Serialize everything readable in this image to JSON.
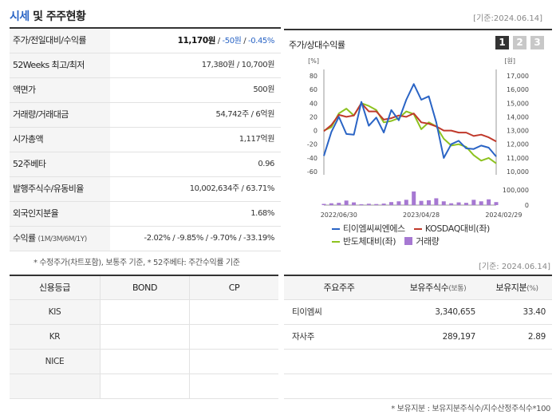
{
  "header": {
    "title_accent": "시세",
    "title_rest": "및 주주현황",
    "date": "[기준:2024.06.14]"
  },
  "summary_rows": [
    {
      "label": "주가/전일대비/수익률",
      "price": "11,170원",
      "sep1": " / ",
      "change": "-50원",
      "sep2": " / ",
      "rate": "-0.45%"
    },
    {
      "label": "52Weeks 최고/최저",
      "value": "17,380원 / 10,700원"
    },
    {
      "label": "액면가",
      "value": "500원"
    },
    {
      "label": "거래량/거래대금",
      "value": "54,742주 / 6억원"
    },
    {
      "label": "시가총액",
      "value": "1,117억원"
    },
    {
      "label": "52주베타",
      "value": "0.96"
    },
    {
      "label": "발행주식수/유동비율",
      "value": "10,002,634주 / 63.71%"
    },
    {
      "label": "외국인지분율",
      "value": "1.68%"
    },
    {
      "label": "수익률",
      "sublabel": "(1M/3M/6M/1Y)",
      "r1": "-2.02%",
      "r2": "-9.85%",
      "r3": "-9.70%",
      "r4": "-33.19%"
    }
  ],
  "summary_note": "* 수정주가(차트포함), 보통주 기준, * 52주베타: 주간수익률 기준",
  "chart": {
    "title": "주가/상대수익률",
    "tabs": [
      "1",
      "2",
      "3"
    ],
    "colors": {
      "stock": "#2a64c5",
      "kosdaq": "#c0392b",
      "semi": "#8dc21f",
      "volume": "#a678d2"
    }
  },
  "chart_data": {
    "type": "line",
    "left_unit": "[%]",
    "right_unit": "[원]",
    "left_ticks": [
      "80",
      "60",
      "40",
      "20",
      "0",
      "-20",
      "-40",
      "-60"
    ],
    "right_ticks": [
      "17,000",
      "16,000",
      "15,000",
      "14,000",
      "13,000",
      "12,000",
      "11,000",
      "10,000"
    ],
    "volume_ticks": [
      "100,000",
      "0"
    ],
    "left_ylim": [
      -60,
      80
    ],
    "right_ylim": [
      10000,
      17000
    ],
    "volume_ylim": [
      0,
      100000
    ],
    "x_labels": [
      "2022/06/30",
      "2023/04/28",
      "2024/02/29"
    ],
    "x_label_positions": [
      2,
      13,
      24
    ],
    "series": [
      {
        "name": "티이엠씨씨엔에스",
        "axis": "left",
        "values": [
          -37,
          -2,
          20,
          -5,
          -6,
          42,
          7,
          19,
          -3,
          30,
          15,
          45,
          68,
          45,
          50,
          12,
          -40,
          -20,
          -15,
          -26,
          -27,
          -22,
          -25,
          -38
        ]
      },
      {
        "name": "KOSDAQ대비(좌)",
        "axis": "left",
        "values": [
          -1,
          8,
          23,
          20,
          22,
          40,
          28,
          28,
          16,
          18,
          22,
          20,
          25,
          12,
          10,
          6,
          0,
          0,
          -3,
          -3,
          -8,
          -6,
          -10,
          -16
        ]
      },
      {
        "name": "반도체대비(좌)",
        "axis": "left",
        "values": [
          0,
          5,
          25,
          32,
          22,
          40,
          36,
          30,
          12,
          14,
          18,
          28,
          24,
          2,
          12,
          6,
          -12,
          -22,
          -20,
          -24,
          -36,
          -44,
          -40,
          -48
        ]
      }
    ],
    "volume": {
      "name": "거래량",
      "values": [
        8000,
        12000,
        15000,
        30000,
        18000,
        6000,
        9000,
        7000,
        10000,
        20000,
        25000,
        35000,
        90000,
        28000,
        32000,
        45000,
        25000,
        12000,
        18000,
        15000,
        35000,
        25000,
        38000,
        20000
      ]
    }
  },
  "credit": {
    "headers": [
      "신용등급",
      "BOND",
      "CP"
    ],
    "rows": [
      [
        "KIS",
        "",
        ""
      ],
      [
        "KR",
        "",
        ""
      ],
      [
        "NICE",
        "",
        ""
      ],
      [
        "",
        "",
        ""
      ]
    ]
  },
  "holders": {
    "date": "[기준: 2024.06.14]",
    "headers": [
      "주요주주",
      "보유주식수",
      "(보통)",
      "보유지분",
      "(%)"
    ],
    "rows": [
      [
        "티이엠씨",
        "3,340,655",
        "33.40"
      ],
      [
        "자사주",
        "289,197",
        "2.89"
      ],
      [
        "",
        "",
        ""
      ],
      [
        "",
        "",
        ""
      ]
    ],
    "note": "* 보유지분 : 보유지분주식수/지수산정주식수*100"
  }
}
